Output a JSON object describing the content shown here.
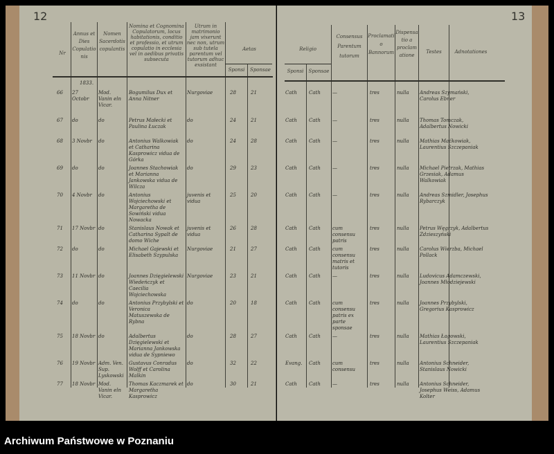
{
  "caption": "Archiwum Państwowe w Poznaniu",
  "page_numbers": {
    "left": "12",
    "right": "13"
  },
  "year": "1833.",
  "headers": {
    "nr": "Nr",
    "annus": "Annus et Dies Copulationis",
    "nomen_sacerdotis": "Nomen Sacerdotis copulantis",
    "nomina": "Nomina et Cognomina Copulatorum, locus habitationis, conditio et professio, et utrum copulatio in ecclesia vel in aedibus privatis subsecuta",
    "status": "Utrum in matrimonio jam vixerunt nec non, utrum sub tutela parentum vel tutorum adhuc exsistant",
    "aetas": "Aetas",
    "aetas_sponsi": "Sponsi",
    "aetas_sponsae": "Sponsae",
    "religio": "Religio",
    "religio_sponsi": "Sponsi",
    "religio_sponsae": "Sponsae",
    "consensus": "Consensus Parentum tutorum",
    "proclamatio": "Proclamatio Bannorum",
    "dispensatio": "Dispensatio a proclamatione",
    "testes": "Testes",
    "adnotationes": "Adnotationes"
  },
  "rows": [
    {
      "nr": "66",
      "date": "27 Octobr",
      "priest": "Mod. Vanin eln Vicar.",
      "couple": "Bogumilus Dux et Anna Nitner",
      "status": "Nurgoviae",
      "age_m": "28",
      "age_f": "21",
      "rel_m": "Cath",
      "rel_f": "Cath",
      "consensus": "—",
      "banna": "tres",
      "disp": "nulla",
      "testes": "Andreas Szymański, Carolus Ebner"
    },
    {
      "nr": "67",
      "date": "do",
      "priest": "do",
      "couple": "Petrus Małecki et Paulina Łuczak",
      "status": "do",
      "age_m": "24",
      "age_f": "21",
      "rel_m": "Cath",
      "rel_f": "Cath",
      "consensus": "—",
      "banna": "tres",
      "disp": "nulla",
      "testes": "Thomas Tomczak, Adalbertus Nowicki"
    },
    {
      "nr": "68",
      "date": "3 Novbr",
      "priest": "do",
      "couple": "Antonius Walkowiak et Catharina Kasprowicz vidua de Górka",
      "status": "do",
      "age_m": "24",
      "age_f": "28",
      "rel_m": "Cath",
      "rel_f": "Cath",
      "consensus": "—",
      "banna": "tres",
      "disp": "nulla",
      "testes": "Mathias Maćkowiak, Laurentius Szczepaniak"
    },
    {
      "nr": "69",
      "date": "do",
      "priest": "do",
      "couple": "Joannes Stachowiak et Marianna Jankowska vidua de Wilcza",
      "status": "do",
      "age_m": "29",
      "age_f": "23",
      "rel_m": "Cath",
      "rel_f": "Cath",
      "consensus": "—",
      "banna": "tres",
      "disp": "nulla",
      "testes": "Michael Pietrzak, Mathias Grzesiak, Adamus Walkowiak"
    },
    {
      "nr": "70",
      "date": "4 Novbr",
      "priest": "do",
      "couple": "Antonius Wojciechowski et Margaretha de Sowiński vidua Nowacka",
      "status": "juvenis et vidua",
      "age_m": "25",
      "age_f": "20",
      "rel_m": "Cath",
      "rel_f": "Cath",
      "consensus": "—",
      "banna": "tres",
      "disp": "nulla",
      "testes": "Andreas Szmidler, Josephus Rybarczyk"
    },
    {
      "nr": "71",
      "date": "17 Novbr",
      "priest": "do",
      "couple": "Stanislaus Nowak et Catharina Sypalt de domo Wiche",
      "status": "juvenis et vidua",
      "age_m": "26",
      "age_f": "28",
      "rel_m": "Cath",
      "rel_f": "Cath",
      "consensus": "cum consensu patris",
      "banna": "tres",
      "disp": "nulla",
      "testes": "Petrus Węgrzyk, Adalbertus Zdzieszyński"
    },
    {
      "nr": "72",
      "date": "do",
      "priest": "do",
      "couple": "Michael Gajewski et Elisabeth Szypulska",
      "status": "Nurgoviae",
      "age_m": "21",
      "age_f": "27",
      "rel_m": "Cath",
      "rel_f": "Cath",
      "consensus": "cum consensu matris et tutoris",
      "banna": "tres",
      "disp": "nulla",
      "testes": "Carolus Wierzba, Michael Pollack"
    },
    {
      "nr": "73",
      "date": "11 Novbr",
      "priest": "do",
      "couple": "Joannes Dzięgielewski Wiedeńczyk et Caecilia Wojciechowska",
      "status": "Nurgoviae",
      "age_m": "23",
      "age_f": "21",
      "rel_m": "Cath",
      "rel_f": "Cath",
      "consensus": "—",
      "banna": "tres",
      "disp": "nulla",
      "testes": "Ludovicus Adamczewski, Joannes Młodziejewski"
    },
    {
      "nr": "74",
      "date": "do",
      "priest": "do",
      "couple": "Antonius Przybylski et Veronica Matuszewska de Rybna",
      "status": "do",
      "age_m": "20",
      "age_f": "18",
      "rel_m": "Cath",
      "rel_f": "Cath",
      "consensus": "cum consensu patris ex parte sponsae",
      "banna": "tres",
      "disp": "nulla",
      "testes": "Joannes Przybylski, Gregorius Kasprowicz"
    },
    {
      "nr": "75",
      "date": "18 Novbr",
      "priest": "do",
      "couple": "Adalbertus Dzięgielewski et Marianna Jankowska vidua de Sypniewo",
      "status": "do",
      "age_m": "28",
      "age_f": "27",
      "rel_m": "Cath",
      "rel_f": "Cath",
      "consensus": "—",
      "banna": "tres",
      "disp": "nulla",
      "testes": "Mathias Łagowski, Laurentius Szczepaniak"
    },
    {
      "nr": "76",
      "date": "19 Novbr",
      "priest": "Adm. Ven. Sup. Lyskowski",
      "couple": "Gustavus Conradus Wolff et Carolina Malkin",
      "status": "do",
      "age_m": "32",
      "age_f": "22",
      "rel_m": "Evang.",
      "rel_f": "Cath",
      "consensus": "cum consensu",
      "banna": "tres",
      "disp": "nulla",
      "testes": "Antonius Schneider, Stanislaus Nowicki"
    },
    {
      "nr": "77",
      "date": "18 Novbr",
      "priest": "Mod. Vanin eln Vicar.",
      "couple": "Thomas Kaczmarek et Margaretha Kasprowicz",
      "status": "do",
      "age_m": "30",
      "age_f": "21",
      "rel_m": "Cath",
      "rel_f": "Cath",
      "consensus": "—",
      "banna": "tres",
      "disp": "nulla",
      "testes": "Antonius Schneider, Josephus Weiss, Adamus Kolter"
    }
  ]
}
